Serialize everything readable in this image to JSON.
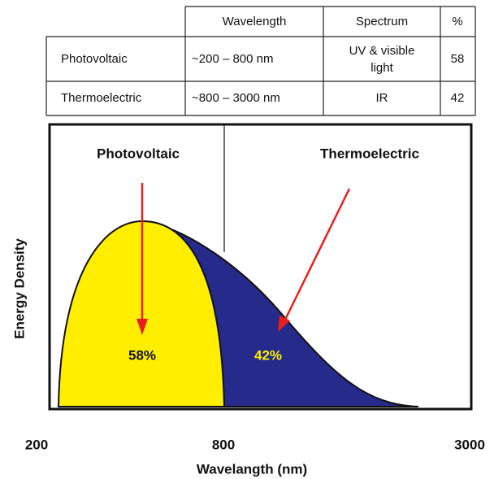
{
  "table": {
    "header": [
      "Wavelength",
      "Spectrum",
      "%"
    ],
    "rows": [
      [
        "Photovoltaic",
        "~200 – 800 nm",
        [
          "UV & visible",
          "light"
        ],
        "58"
      ],
      [
        "Thermoelectric",
        "~800 – 3000 nm",
        [
          "IR"
        ],
        "42"
      ]
    ]
  },
  "figure": {
    "regions": [
      "Photovoltaic",
      "Thermoelectric"
    ],
    "region_labels": [
      "58%",
      "42%"
    ],
    "y_label": "Energy Density",
    "x_ticks": [
      "200",
      "800",
      "3000"
    ],
    "x_label": "Wavelangth (nm)"
  }
}
